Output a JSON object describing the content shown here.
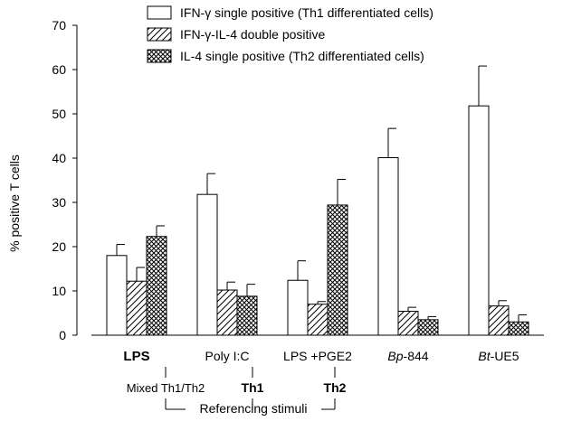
{
  "chart_data": {
    "type": "bar",
    "categories": [
      {
        "label": "LPS",
        "italic_prefix": ""
      },
      {
        "label": "Poly I:C",
        "italic_prefix": ""
      },
      {
        "label": "LPS +PGE2",
        "italic_prefix": ""
      },
      {
        "label": "-844",
        "italic_prefix": "Bp"
      },
      {
        "label": "-UE5",
        "italic_prefix": "Bt"
      }
    ],
    "series": [
      {
        "name": "IFN-γ single positive (Th1 differentiated cells)",
        "pattern": "open",
        "values": [
          18,
          31.8,
          12.4,
          40.1,
          51.8
        ],
        "errors": [
          2.5,
          4.7,
          4.4,
          6.6,
          9
        ]
      },
      {
        "name": "IFN-γ-IL-4 double positive",
        "pattern": "hatch",
        "values": [
          12.2,
          10.2,
          7.0,
          5.4,
          6.6
        ],
        "errors": [
          3.1,
          1.8,
          0.6,
          0.9,
          1.2
        ]
      },
      {
        "name": "IL-4 single positive (Th2 differentiated cells)",
        "pattern": "crosshatch",
        "values": [
          22.3,
          8.8,
          29.4,
          3.5,
          3.0
        ],
        "errors": [
          2.4,
          2.7,
          5.8,
          0.7,
          1.6
        ]
      }
    ],
    "ylabel": "% positive T cells",
    "ylim": [
      0,
      70
    ],
    "yticks": [
      0,
      10,
      20,
      30,
      40,
      50,
      60,
      70
    ],
    "legend_position": "top",
    "reference_labels": [
      "Mixed Th1/Th2",
      "Th1",
      "Th2"
    ],
    "reference_caption": "Referencing stimuli"
  }
}
